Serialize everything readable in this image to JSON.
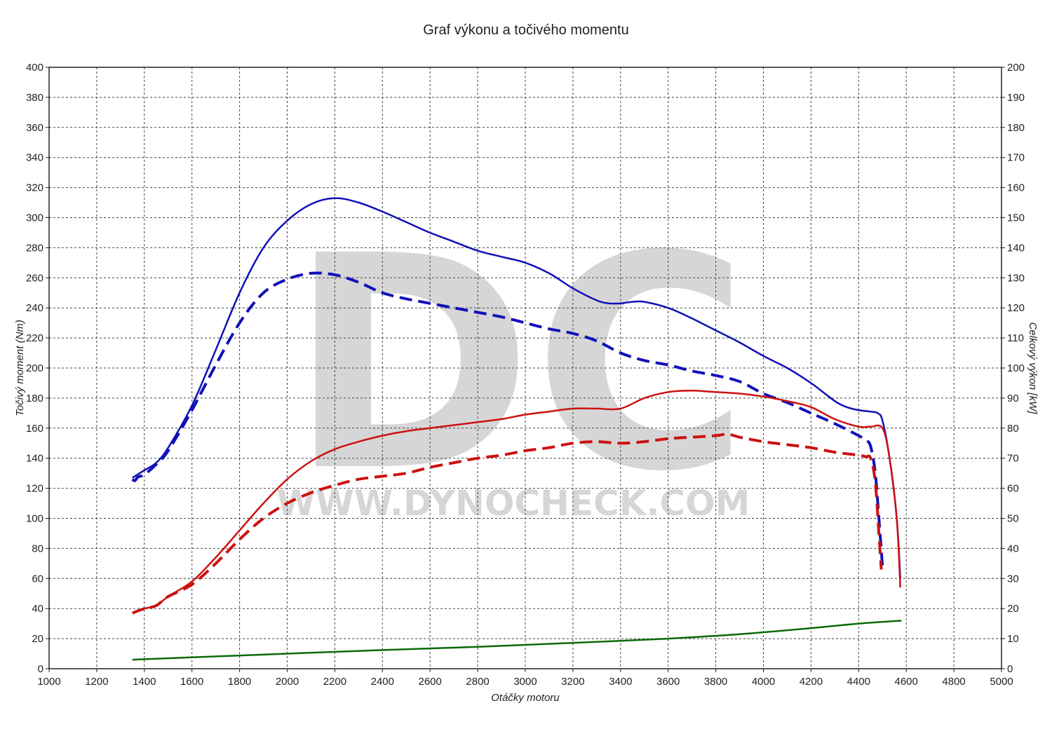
{
  "chart_data": {
    "type": "line",
    "title": "Graf výkonu a točivého momentu",
    "xlabel": "Otáčky motoru",
    "ylabel_left": "Točivý moment (Nm)",
    "ylabel_right": "Celkový výkon [kW]",
    "xlim": [
      1000,
      5000
    ],
    "ylim_left": [
      0,
      400
    ],
    "ylim_right": [
      0,
      200
    ],
    "x_ticks": [
      1000,
      1200,
      1400,
      1600,
      1800,
      2000,
      2200,
      2400,
      2600,
      2800,
      3000,
      3200,
      3400,
      3600,
      3800,
      4000,
      4200,
      4400,
      4600,
      4800,
      5000
    ],
    "y_left_ticks": [
      0,
      20,
      40,
      60,
      80,
      100,
      120,
      140,
      160,
      180,
      200,
      220,
      240,
      260,
      280,
      300,
      320,
      340,
      360,
      380,
      400
    ],
    "y_right_ticks": [
      0,
      10,
      20,
      30,
      40,
      50,
      60,
      70,
      80,
      90,
      100,
      110,
      120,
      130,
      140,
      150,
      160,
      170,
      180,
      190,
      200
    ],
    "grid": true,
    "watermark": {
      "logo": "DC",
      "text": "WWW.DYNOCHECK.COM"
    },
    "colors": {
      "torque": "#1010b8",
      "power": "#cc1111",
      "loss": "#0a6a0a",
      "watermark": "#d6d6d6"
    },
    "series": [
      {
        "axis": "left",
        "color": "#1010b8",
        "style": "solid",
        "x": [
          1350,
          1370,
          1400,
          1450,
          1500,
          1600,
          1700,
          1800,
          1900,
          2000,
          2100,
          2200,
          2300,
          2400,
          2500,
          2600,
          2700,
          2800,
          2900,
          3000,
          3100,
          3200,
          3300,
          3350,
          3400,
          3450,
          3500,
          3600,
          3700,
          3800,
          3900,
          4000,
          4100,
          4200,
          4300,
          4350,
          4400,
          4450,
          4480,
          4500,
          4530,
          4560,
          4575
        ],
        "y": [
          127,
          129,
          132,
          137,
          147,
          175,
          212,
          250,
          280,
          298,
          309,
          313,
          310,
          304,
          297,
          290,
          284,
          278,
          274,
          270,
          263,
          253,
          245,
          243,
          243,
          244,
          244,
          240,
          233,
          225,
          217,
          208,
          200,
          190,
          178,
          174,
          172,
          171,
          170,
          165,
          140,
          100,
          60
        ]
      },
      {
        "axis": "left",
        "color": "#1010b8",
        "style": "dashed",
        "x": [
          1350,
          1360,
          1370,
          1380,
          1400,
          1450,
          1500,
          1600,
          1700,
          1800,
          1900,
          2000,
          2100,
          2200,
          2300,
          2400,
          2500,
          2600,
          2700,
          2800,
          2900,
          3000,
          3100,
          3200,
          3300,
          3400,
          3500,
          3600,
          3700,
          3800,
          3900,
          4000,
          4100,
          4200,
          4300,
          4400,
          4430,
          4450,
          4470,
          4485,
          4500
        ],
        "y": [
          126,
          125,
          127,
          128,
          129,
          136,
          145,
          172,
          202,
          230,
          250,
          259,
          263,
          262,
          257,
          250,
          246,
          243,
          240,
          237,
          234,
          230,
          226,
          223,
          218,
          210,
          205,
          202,
          198,
          195,
          191,
          183,
          177,
          170,
          163,
          155,
          152,
          148,
          130,
          100,
          68
        ]
      },
      {
        "axis": "right",
        "color": "#cc1111",
        "style": "solid",
        "x": [
          1350,
          1400,
          1450,
          1500,
          1600,
          1700,
          1800,
          1900,
          2000,
          2100,
          2200,
          2300,
          2400,
          2500,
          2600,
          2700,
          2800,
          2900,
          3000,
          3100,
          3200,
          3300,
          3400,
          3500,
          3600,
          3700,
          3800,
          3900,
          4000,
          4100,
          4200,
          4300,
          4400,
          4450,
          4500,
          4530,
          4560,
          4575
        ],
        "y": [
          18.5,
          20,
          21,
          24,
          29,
          37,
          46,
          55,
          63,
          69,
          73,
          75.5,
          77.5,
          79,
          80,
          81,
          82,
          83,
          84.5,
          85.5,
          86.5,
          86.5,
          86.5,
          90,
          92,
          92.5,
          92,
          91.5,
          90.5,
          89,
          87,
          83,
          80.5,
          80.5,
          80,
          70,
          50,
          27
        ]
      },
      {
        "axis": "right",
        "color": "#cc1111",
        "style": "dashed",
        "x": [
          1350,
          1400,
          1450,
          1500,
          1600,
          1700,
          1800,
          1900,
          2000,
          2100,
          2200,
          2300,
          2400,
          2500,
          2600,
          2700,
          2800,
          2900,
          3000,
          3100,
          3200,
          3300,
          3400,
          3500,
          3600,
          3700,
          3800,
          3850,
          3900,
          4000,
          4100,
          4200,
          4300,
          4400,
          4430,
          4450,
          4470,
          4485,
          4495
        ],
        "y": [
          18.5,
          20,
          21,
          24,
          28,
          35,
          43,
          50,
          55,
          58.5,
          61,
          63,
          64,
          65,
          67,
          68.5,
          70,
          71,
          72.5,
          73.5,
          75,
          75.5,
          75,
          75.5,
          76.5,
          77,
          77.5,
          78,
          77,
          75.5,
          74.5,
          73.5,
          72,
          71,
          70.5,
          70,
          62,
          45,
          33
        ]
      },
      {
        "axis": "right",
        "color": "#0a6a0a",
        "style": "solid",
        "x": [
          1350,
          1600,
          2000,
          2400,
          2800,
          3200,
          3600,
          3900,
          4200,
          4400,
          4580
        ],
        "y": [
          3,
          3.8,
          5,
          6.2,
          7.3,
          8.6,
          10,
          11.5,
          13.5,
          15,
          16
        ]
      }
    ]
  }
}
